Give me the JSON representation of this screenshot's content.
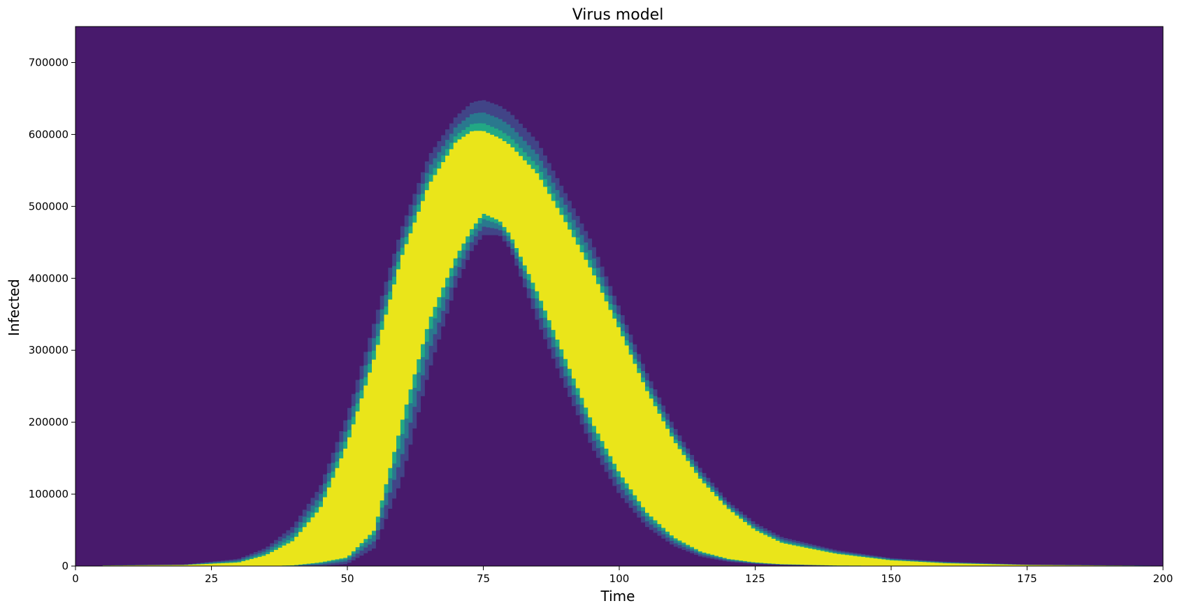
{
  "chart_data": {
    "type": "heatmap",
    "title": "Virus model",
    "xlabel": "Time",
    "ylabel": "Infected",
    "xlim": [
      0,
      200
    ],
    "ylim": [
      0,
      750000
    ],
    "xticks": [
      0,
      25,
      50,
      75,
      100,
      125,
      150,
      175,
      200
    ],
    "yticks": [
      0,
      100000,
      200000,
      300000,
      400000,
      500000,
      600000,
      700000
    ],
    "grid": false,
    "legend": "none",
    "colors": {
      "background": "#481A6C",
      "core": "#EAE51A",
      "inner_edge": "#22A884",
      "middle_edge": "#2A788E",
      "outer_edge": "#414487"
    },
    "band_profile": {
      "time": [
        5,
        20,
        30,
        35,
        40,
        45,
        50,
        55,
        60,
        65,
        70,
        73,
        75,
        78,
        80,
        85,
        90,
        95,
        100,
        105,
        110,
        115,
        120,
        125,
        130,
        140,
        150,
        160,
        175,
        200
      ],
      "upper_edge": [
        1000,
        2000,
        10000,
        25000,
        55000,
        110000,
        210000,
        340000,
        470000,
        570000,
        625000,
        645000,
        648000,
        640000,
        630000,
        590000,
        520000,
        450000,
        360000,
        270000,
        195000,
        135000,
        90000,
        60000,
        40000,
        22000,
        11000,
        6000,
        2000,
        500
      ],
      "upper_core": [
        700,
        1500,
        5000,
        15000,
        35000,
        80000,
        170000,
        290000,
        430000,
        530000,
        590000,
        605000,
        605000,
        595000,
        585000,
        545000,
        480000,
        410000,
        330000,
        245000,
        175000,
        120000,
        80000,
        50000,
        32000,
        17000,
        8000,
        4000,
        1500,
        300
      ],
      "lower_core": [
        0,
        0,
        0,
        0,
        1000,
        5000,
        12000,
        50000,
        200000,
        340000,
        430000,
        470000,
        490000,
        480000,
        460000,
        380000,
        290000,
        200000,
        130000,
        75000,
        40000,
        20000,
        10000,
        5000,
        2500,
        800,
        200,
        0,
        0,
        0
      ],
      "lower_edge": [
        0,
        0,
        0,
        0,
        0,
        0,
        3000,
        25000,
        120000,
        270000,
        390000,
        440000,
        460000,
        460000,
        440000,
        340000,
        250000,
        165000,
        100000,
        55000,
        28000,
        13000,
        6000,
        3000,
        1500,
        400,
        0,
        0,
        0,
        0
      ]
    }
  }
}
